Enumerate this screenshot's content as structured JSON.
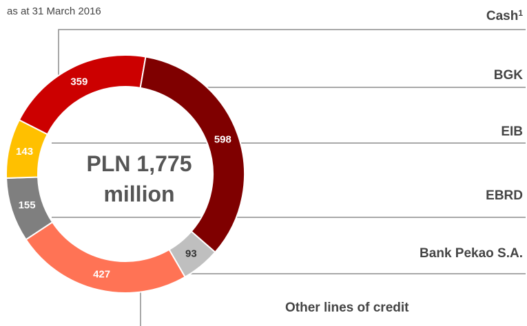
{
  "chart_data": {
    "type": "donut",
    "subtitle": "as at 31 March 2016",
    "center_label_line1": "PLN 1,775",
    "center_label_line2": "million",
    "total": 1775,
    "unit": "PLN million",
    "slices": [
      {
        "name": "BGK",
        "value": 359,
        "label": "359",
        "color": "#cc0000",
        "label_color": "#ffffff"
      },
      {
        "name": "EBRD",
        "value": 598,
        "label": "598",
        "color": "#7f0000",
        "label_color": "#ffffff"
      },
      {
        "name": "Other lines of credit",
        "value": 93,
        "label": "93",
        "color": "#bfbfbf",
        "label_color": "#333333"
      },
      {
        "name": "Bank Pekao S.A.",
        "value": 427,
        "label": "427",
        "color": "#ff7355",
        "label_color": "#ffffff"
      },
      {
        "name": "EIB",
        "value": 155,
        "label": "155",
        "color": "#7f7f7f",
        "label_color": "#ffffff"
      },
      {
        "name": "Cash",
        "value": 143,
        "label": "143",
        "color": "#ffc000",
        "label_color": "#ffffff"
      }
    ],
    "legend": [
      {
        "name": "Cash",
        "sup": "1"
      },
      {
        "name": "BGK",
        "sup": ""
      },
      {
        "name": "EIB",
        "sup": ""
      },
      {
        "name": "EBRD",
        "sup": ""
      },
      {
        "name": "Bank Pekao S.A.",
        "sup": ""
      },
      {
        "name": "Other lines of credit",
        "sup": ""
      }
    ]
  }
}
